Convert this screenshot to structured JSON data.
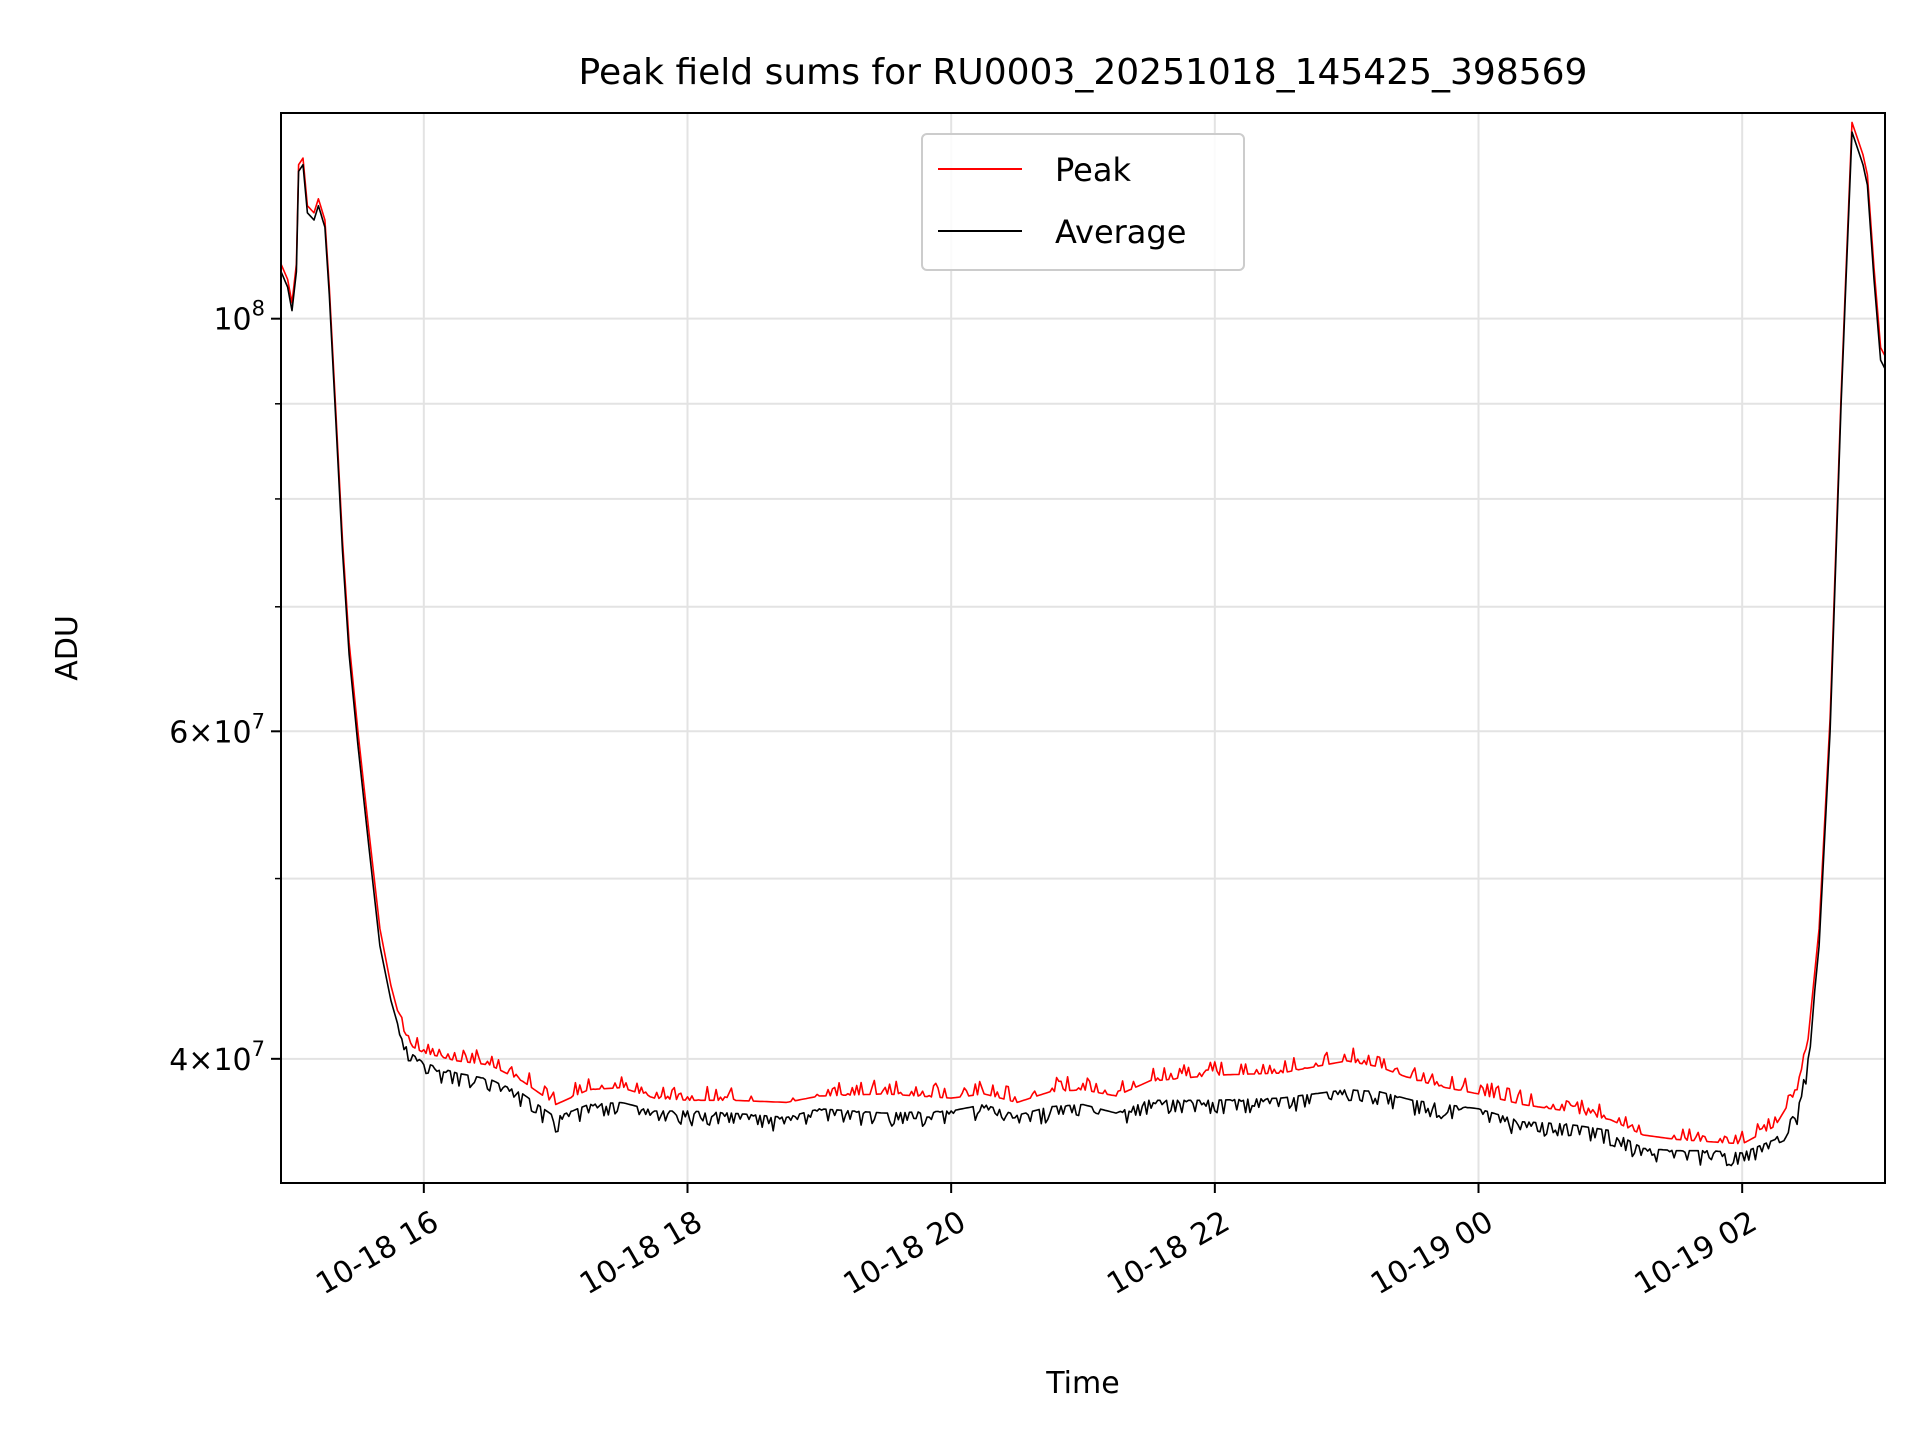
{
  "chart_data": {
    "type": "line",
    "title": "Peak field sums for RU0003_20251018_145425_398569",
    "xlabel": "Time",
    "ylabel": "ADU",
    "y_scale": "log",
    "ylim": [
      34300000,
      129000000
    ],
    "xlim": [
      "2025-10-18 14:55",
      "2025-10-19 03:05"
    ],
    "grid": true,
    "legend": {
      "placement": "upper center",
      "entries": [
        {
          "name": "Peak",
          "color": "#ff0000"
        },
        {
          "name": "Average",
          "color": "#000000"
        }
      ]
    },
    "x_ticks": [
      {
        "t": "2025-10-18 16:00",
        "label": "10-18 16"
      },
      {
        "t": "2025-10-18 18:00",
        "label": "10-18 18"
      },
      {
        "t": "2025-10-18 20:00",
        "label": "10-18 20"
      },
      {
        "t": "2025-10-18 22:00",
        "label": "10-18 22"
      },
      {
        "t": "2025-10-19 00:00",
        "label": "10-19 00"
      },
      {
        "t": "2025-10-19 02:00",
        "label": "10-19 02"
      }
    ],
    "y_ticks": [
      {
        "value": 40000000,
        "base": "4",
        "exp": "7"
      },
      {
        "value": 60000000,
        "base": "6",
        "exp": "7"
      },
      {
        "value": 100000000,
        "base": "",
        "exp": "8"
      }
    ],
    "y_minor_ticks": [
      50000000,
      70000000,
      80000000,
      90000000
    ],
    "series": [
      {
        "name": "Average",
        "color": "#000000",
        "x": [
          "2025-10-18 14:55",
          "2025-10-18 14:58",
          "2025-10-18 15:00",
          "2025-10-18 15:02",
          "2025-10-18 15:03",
          "2025-10-18 15:05",
          "2025-10-18 15:07",
          "2025-10-18 15:10",
          "2025-10-18 15:12",
          "2025-10-18 15:15",
          "2025-10-18 15:17",
          "2025-10-18 15:20",
          "2025-10-18 15:23",
          "2025-10-18 15:26",
          "2025-10-18 15:30",
          "2025-10-18 15:35",
          "2025-10-18 15:40",
          "2025-10-18 15:45",
          "2025-10-18 15:50",
          "2025-10-18 15:55",
          "2025-10-18 16:00",
          "2025-10-18 16:15",
          "2025-10-18 16:30",
          "2025-10-18 16:45",
          "2025-10-18 17:00",
          "2025-10-18 17:15",
          "2025-10-18 17:30",
          "2025-10-18 17:45",
          "2025-10-18 18:00",
          "2025-10-18 18:20",
          "2025-10-18 18:45",
          "2025-10-18 19:00",
          "2025-10-18 19:30",
          "2025-10-18 20:00",
          "2025-10-18 20:15",
          "2025-10-18 20:30",
          "2025-10-18 20:45",
          "2025-10-18 21:00",
          "2025-10-18 21:15",
          "2025-10-18 21:30",
          "2025-10-18 22:00",
          "2025-10-18 22:30",
          "2025-10-18 23:00",
          "2025-10-18 23:15",
          "2025-10-18 23:30",
          "2025-10-18 23:45",
          "2025-10-19 00:00",
          "2025-10-19 00:20",
          "2025-10-19 00:40",
          "2025-10-19 01:00",
          "2025-10-19 01:15",
          "2025-10-19 01:30",
          "2025-10-19 01:45",
          "2025-10-19 02:00",
          "2025-10-19 02:15",
          "2025-10-19 02:25",
          "2025-10-19 02:30",
          "2025-10-19 02:35",
          "2025-10-19 02:40",
          "2025-10-19 02:45",
          "2025-10-19 02:50",
          "2025-10-19 02:53",
          "2025-10-19 02:55",
          "2025-10-19 02:57",
          "2025-10-19 03:00",
          "2025-10-19 03:03",
          "2025-10-19 03:05"
        ],
        "y": [
          106000000,
          104000000,
          101000000,
          106000000,
          120000000,
          121000000,
          114000000,
          113000000,
          115000000,
          112000000,
          103000000,
          88000000,
          75000000,
          66000000,
          59000000,
          52000000,
          46000000,
          43000000,
          41000000,
          40200000,
          39800000,
          39300000,
          39000000,
          38300000,
          37200000,
          37800000,
          37900000,
          37500000,
          37500000,
          37400000,
          37200000,
          37600000,
          37400000,
          37500000,
          37800000,
          37300000,
          37700000,
          37800000,
          37400000,
          38000000,
          38000000,
          38100000,
          38500000,
          38400000,
          38000000,
          37800000,
          37600000,
          37000000,
          36900000,
          36600000,
          35800000,
          35700000,
          35700000,
          35600000,
          36200000,
          37500000,
          40000000,
          46000000,
          60000000,
          90000000,
          126000000,
          123000000,
          121000000,
          118000000,
          105000000,
          95000000,
          94000000
        ]
      },
      {
        "name": "Peak",
        "color": "#ff0000",
        "x": [
          "2025-10-18 14:55",
          "2025-10-18 14:58",
          "2025-10-18 15:00",
          "2025-10-18 15:02",
          "2025-10-18 15:03",
          "2025-10-18 15:05",
          "2025-10-18 15:07",
          "2025-10-18 15:10",
          "2025-10-18 15:12",
          "2025-10-18 15:15",
          "2025-10-18 15:17",
          "2025-10-18 15:20",
          "2025-10-18 15:23",
          "2025-10-18 15:26",
          "2025-10-18 15:30",
          "2025-10-18 15:35",
          "2025-10-18 15:40",
          "2025-10-18 15:45",
          "2025-10-18 15:50",
          "2025-10-18 15:55",
          "2025-10-18 16:00",
          "2025-10-18 16:15",
          "2025-10-18 16:30",
          "2025-10-18 16:45",
          "2025-10-18 17:00",
          "2025-10-18 17:15",
          "2025-10-18 17:30",
          "2025-10-18 17:45",
          "2025-10-18 18:00",
          "2025-10-18 18:20",
          "2025-10-18 18:45",
          "2025-10-18 19:00",
          "2025-10-18 19:30",
          "2025-10-18 20:00",
          "2025-10-18 20:15",
          "2025-10-18 20:30",
          "2025-10-18 20:45",
          "2025-10-18 21:00",
          "2025-10-18 21:15",
          "2025-10-18 21:30",
          "2025-10-18 22:00",
          "2025-10-18 22:30",
          "2025-10-18 23:00",
          "2025-10-18 23:15",
          "2025-10-18 23:30",
          "2025-10-18 23:45",
          "2025-10-19 00:00",
          "2025-10-19 00:20",
          "2025-10-19 00:40",
          "2025-10-19 01:00",
          "2025-10-19 01:15",
          "2025-10-19 01:30",
          "2025-10-19 01:45",
          "2025-10-19 02:00",
          "2025-10-19 02:15",
          "2025-10-19 02:25",
          "2025-10-19 02:30",
          "2025-10-19 02:35",
          "2025-10-19 02:40",
          "2025-10-19 02:45",
          "2025-10-19 02:50",
          "2025-10-19 02:53",
          "2025-10-19 02:55",
          "2025-10-19 02:57",
          "2025-10-19 03:00",
          "2025-10-19 03:03",
          "2025-10-19 03:05"
        ],
        "y": [
          107000000,
          105000000,
          102000000,
          107000000,
          121000000,
          122000000,
          115000000,
          114000000,
          116000000,
          113000000,
          104000000,
          89000000,
          76000000,
          67000000,
          60000000,
          53000000,
          47000000,
          43800000,
          41600000,
          40600000,
          40300000,
          39900000,
          39700000,
          38900000,
          37800000,
          38500000,
          38600000,
          38100000,
          38000000,
          38000000,
          37900000,
          38200000,
          38300000,
          38100000,
          38300000,
          37900000,
          38400000,
          38500000,
          38200000,
          38900000,
          39200000,
          39300000,
          39900000,
          39600000,
          39000000,
          38600000,
          38300000,
          37800000,
          37500000,
          37100000,
          36400000,
          36200000,
          36100000,
          36000000,
          36800000,
          38500000,
          41000000,
          47000000,
          61000000,
          91000000,
          127500000,
          124500000,
          122500000,
          119500000,
          106500000,
          96500000,
          95500000
        ]
      }
    ]
  }
}
